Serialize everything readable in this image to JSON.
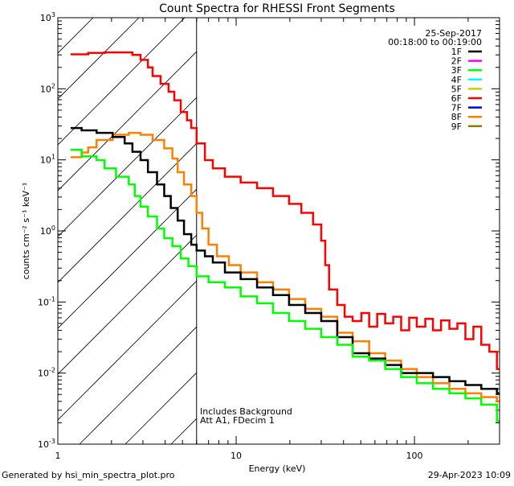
{
  "chart_data": {
    "type": "line",
    "title": "Count Spectra for RHESSI Front Segments",
    "xlabel": "Energy (keV)",
    "ylabel": "counts cm⁻² s⁻¹ keV⁻¹",
    "xscale": "log",
    "yscale": "log",
    "xlim": [
      1,
      300
    ],
    "ylim": [
      0.001,
      1000
    ],
    "x_tick_labels": [
      {
        "value": 1,
        "label": "1"
      },
      {
        "value": 10,
        "label": "10"
      },
      {
        "value": 100,
        "label": "100"
      }
    ],
    "y_tick_labels": [
      {
        "value": 0.001,
        "base": "10",
        "exp": "-3"
      },
      {
        "value": 0.01,
        "base": "10",
        "exp": "-2"
      },
      {
        "value": 0.1,
        "base": "10",
        "exp": "-1"
      },
      {
        "value": 1,
        "base": "10",
        "exp": "0"
      },
      {
        "value": 10,
        "base": "10",
        "exp": "1"
      },
      {
        "value": 100,
        "base": "10",
        "exp": "2"
      },
      {
        "value": 1000,
        "base": "10",
        "exp": "3"
      }
    ],
    "hatched_region_max_energy": 6,
    "date": "25-Sep-2017",
    "time_range": "00:18:00 to 00:19:00",
    "annotations": [
      "Includes Background",
      "Att A1, FDecim 1"
    ],
    "legend_placement": "top-right",
    "legend": [
      {
        "label": "1F",
        "color": "#000000"
      },
      {
        "label": "2F",
        "color": "#ff00ff"
      },
      {
        "label": "3F",
        "color": "#00ff00"
      },
      {
        "label": "4F",
        "color": "#00ffff"
      },
      {
        "label": "5F",
        "color": "#cccc00"
      },
      {
        "label": "6F",
        "color": "#ff0000"
      },
      {
        "label": "7F",
        "color": "#0000ff"
      },
      {
        "label": "8F",
        "color": "#ff8000"
      },
      {
        "label": "9F",
        "color": "#808000"
      }
    ],
    "series": [
      {
        "name": "6F",
        "color": "#ff0000",
        "points": [
          [
            1.18,
            305
          ],
          [
            1.48,
            320
          ],
          [
            1.83,
            325
          ],
          [
            2.25,
            325
          ],
          [
            2.62,
            300
          ],
          [
            2.91,
            255
          ],
          [
            3.2,
            200
          ],
          [
            3.4,
            151
          ],
          [
            3.77,
            117
          ],
          [
            4.18,
            91
          ],
          [
            4.5,
            69
          ],
          [
            4.89,
            47
          ],
          [
            5.3,
            36
          ],
          [
            5.6,
            28
          ],
          [
            6.0,
            17
          ],
          [
            6.68,
            9.9
          ],
          [
            7.4,
            7.6
          ],
          [
            8.65,
            5.8
          ],
          [
            10.6,
            4.8
          ],
          [
            13.1,
            4.0
          ],
          [
            16.1,
            3.1
          ],
          [
            19.8,
            2.4
          ],
          [
            23.2,
            1.8
          ],
          [
            27.0,
            1.23
          ],
          [
            30.0,
            0.73
          ],
          [
            31.6,
            0.33
          ],
          [
            33.2,
            0.15
          ],
          [
            36.9,
            0.091
          ],
          [
            40.6,
            0.062
          ],
          [
            45.0,
            0.054
          ],
          [
            50.4,
            0.07
          ],
          [
            55.7,
            0.045
          ],
          [
            61.8,
            0.068
          ],
          [
            68.5,
            0.05
          ],
          [
            76.0,
            0.062
          ],
          [
            84.2,
            0.04
          ],
          [
            93.4,
            0.06
          ],
          [
            103,
            0.045
          ],
          [
            115,
            0.058
          ],
          [
            127,
            0.04
          ],
          [
            141,
            0.055
          ],
          [
            157,
            0.042
          ],
          [
            174,
            0.05
          ],
          [
            193,
            0.03
          ],
          [
            214,
            0.045
          ],
          [
            237,
            0.025
          ],
          [
            263,
            0.02
          ],
          [
            290,
            0.0114
          ]
        ]
      },
      {
        "name": "8F",
        "color": "#ff8000",
        "points": [
          [
            1.18,
            10.9
          ],
          [
            1.36,
            12.7
          ],
          [
            1.48,
            15
          ],
          [
            1.65,
            19
          ],
          [
            2.03,
            22.5
          ],
          [
            2.5,
            24
          ],
          [
            2.91,
            22.5
          ],
          [
            3.4,
            19
          ],
          [
            3.95,
            14.5
          ],
          [
            4.39,
            10.4
          ],
          [
            4.7,
            6.7
          ],
          [
            5.1,
            4.5
          ],
          [
            5.6,
            3.1
          ],
          [
            6.0,
            1.8
          ],
          [
            6.45,
            1.08
          ],
          [
            7.0,
            0.64
          ],
          [
            7.8,
            0.44
          ],
          [
            9.1,
            0.33
          ],
          [
            10.6,
            0.26
          ],
          [
            13.1,
            0.19
          ],
          [
            16.1,
            0.15
          ],
          [
            19.8,
            0.11
          ],
          [
            24.4,
            0.08
          ],
          [
            30.0,
            0.062
          ],
          [
            36.9,
            0.037
          ],
          [
            45.0,
            0.028
          ],
          [
            55.7,
            0.019
          ],
          [
            68.5,
            0.015
          ],
          [
            84.2,
            0.0114
          ],
          [
            103,
            0.0088
          ],
          [
            127,
            0.0072
          ],
          [
            157,
            0.006
          ],
          [
            193,
            0.0052
          ],
          [
            237,
            0.0046
          ],
          [
            290,
            0.004
          ]
        ]
      },
      {
        "name": "1F",
        "color": "#000000",
        "points": [
          [
            1.18,
            28
          ],
          [
            1.36,
            26
          ],
          [
            1.65,
            24
          ],
          [
            2.03,
            21
          ],
          [
            2.37,
            17
          ],
          [
            2.62,
            13
          ],
          [
            2.91,
            9.9
          ],
          [
            3.2,
            6.7
          ],
          [
            3.6,
            4.5
          ],
          [
            3.95,
            3.1
          ],
          [
            4.3,
            2.1
          ],
          [
            4.7,
            1.4
          ],
          [
            5.1,
            0.9
          ],
          [
            5.6,
            0.64
          ],
          [
            6.0,
            0.53
          ],
          [
            6.68,
            0.44
          ],
          [
            7.4,
            0.36
          ],
          [
            8.65,
            0.26
          ],
          [
            10.6,
            0.21
          ],
          [
            13.1,
            0.16
          ],
          [
            16.1,
            0.125
          ],
          [
            19.8,
            0.091
          ],
          [
            24.4,
            0.07
          ],
          [
            30.0,
            0.054
          ],
          [
            36.9,
            0.032
          ],
          [
            45.0,
            0.019
          ],
          [
            55.7,
            0.016
          ],
          [
            68.5,
            0.013
          ],
          [
            84.2,
            0.01
          ],
          [
            103,
            0.01
          ],
          [
            127,
            0.0088
          ],
          [
            157,
            0.0077
          ],
          [
            193,
            0.0068
          ],
          [
            237,
            0.006
          ],
          [
            290,
            0.0052
          ]
        ]
      },
      {
        "name": "3F",
        "color": "#00ff00",
        "points": [
          [
            1.18,
            13.8
          ],
          [
            1.36,
            11.2
          ],
          [
            1.65,
            9.9
          ],
          [
            1.83,
            7.6
          ],
          [
            2.12,
            5.8
          ],
          [
            2.5,
            4.5
          ],
          [
            2.7,
            3.1
          ],
          [
            2.91,
            2.2
          ],
          [
            3.2,
            1.6
          ],
          [
            3.6,
            1.08
          ],
          [
            3.95,
            0.79
          ],
          [
            4.39,
            0.61
          ],
          [
            4.89,
            0.41
          ],
          [
            5.4,
            0.32
          ],
          [
            6.0,
            0.23
          ],
          [
            7.0,
            0.19
          ],
          [
            8.65,
            0.16
          ],
          [
            10.6,
            0.12
          ],
          [
            13.1,
            0.096
          ],
          [
            16.1,
            0.07
          ],
          [
            19.8,
            0.054
          ],
          [
            24.4,
            0.042
          ],
          [
            30.0,
            0.032
          ],
          [
            36.9,
            0.025
          ],
          [
            45.0,
            0.017
          ],
          [
            55.7,
            0.015
          ],
          [
            68.5,
            0.0114
          ],
          [
            84.2,
            0.0088
          ],
          [
            103,
            0.0072
          ],
          [
            127,
            0.006
          ],
          [
            157,
            0.0052
          ],
          [
            193,
            0.0044
          ],
          [
            237,
            0.0036
          ],
          [
            290,
            0.0021
          ]
        ]
      }
    ]
  },
  "footer": {
    "generated_by": "Generated by hsi_min_spectra_plot.pro",
    "timestamp": "29-Apr-2023 10:09"
  }
}
